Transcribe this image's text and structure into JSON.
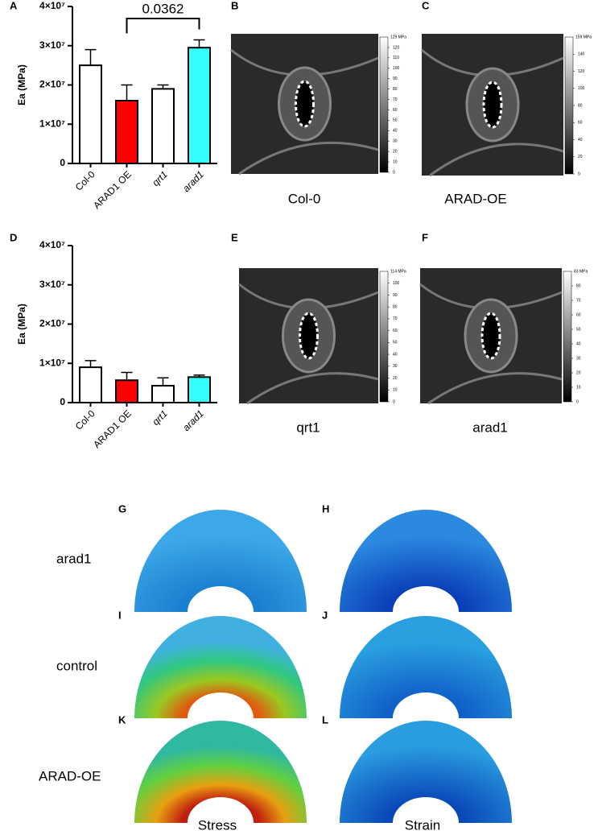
{
  "chart_data": [
    {
      "type": "bar",
      "panel": "A",
      "y_label": "Ea (MPa)",
      "categories": [
        "Col-0",
        "ARAD1 OE",
        "qrt1",
        "arad1"
      ],
      "italic": [
        false,
        false,
        true,
        true
      ],
      "values": [
        25000000,
        16000000,
        19000000,
        29500000
      ],
      "errors": [
        4000000,
        4000000,
        1000000,
        2000000
      ],
      "colors": [
        "#ffffff",
        "#ff0000",
        "#ffffff",
        "#33ffff"
      ],
      "ylim": [
        0,
        40000000
      ],
      "yticks": [
        0,
        {
          "value": 10000000,
          "label": "1×10⁷"
        },
        {
          "value": 20000000,
          "label": "2×10⁷"
        },
        {
          "value": 30000000,
          "label": "3×10⁷"
        },
        {
          "value": 40000000,
          "label": "4×10⁷"
        }
      ],
      "annotation": {
        "text": "0.0362",
        "from": 1,
        "to": 3
      }
    },
    {
      "type": "bar",
      "panel": "D",
      "y_label": "Ea (MPa)",
      "categories": [
        "Col-0",
        "ARAD1 OE",
        "qrt1",
        "arad1"
      ],
      "italic": [
        false,
        false,
        true,
        true
      ],
      "values": [
        9000000,
        5700000,
        4300000,
        6500000
      ],
      "errors": [
        1700000,
        2000000,
        2000000,
        500000
      ],
      "colors": [
        "#ffffff",
        "#ff0000",
        "#ffffff",
        "#33ffff"
      ],
      "ylim": [
        0,
        40000000
      ],
      "yticks": [
        0,
        {
          "value": 10000000,
          "label": "1×10⁷"
        },
        {
          "value": 20000000,
          "label": "2×10⁷"
        },
        {
          "value": 30000000,
          "label": "3×10⁷"
        },
        {
          "value": 40000000,
          "label": "4×10⁷"
        }
      ]
    }
  ],
  "micrographs": [
    {
      "panel": "B",
      "caption": "Col-0",
      "scale_top": "129 MPa",
      "scale_ticks": [
        120,
        110,
        100,
        90,
        80,
        70,
        60,
        50,
        40,
        30,
        20,
        10,
        0
      ]
    },
    {
      "panel": "C",
      "caption": "ARAD-OE",
      "scale_top": "159 MPa",
      "scale_ticks": [
        140,
        120,
        100,
        80,
        60,
        40,
        20,
        0
      ]
    },
    {
      "panel": "E",
      "caption": "qrt1",
      "scale_top": "114 MPa",
      "scale_ticks": [
        100,
        90,
        80,
        70,
        60,
        50,
        40,
        30,
        20,
        10,
        0
      ]
    },
    {
      "panel": "F",
      "caption": "arad1",
      "scale_top": "83 MPa",
      "scale_ticks": [
        80,
        70,
        60,
        50,
        40,
        30,
        20,
        10,
        0
      ]
    }
  ],
  "models": {
    "rows": [
      {
        "label": "arad1",
        "panels": [
          "G",
          "H"
        ]
      },
      {
        "label": "control",
        "panels": [
          "I",
          "J"
        ]
      },
      {
        "label": "ARAD-OE",
        "panels": [
          "K",
          "L"
        ]
      }
    ],
    "columns": [
      "Stress",
      "Strain"
    ]
  }
}
